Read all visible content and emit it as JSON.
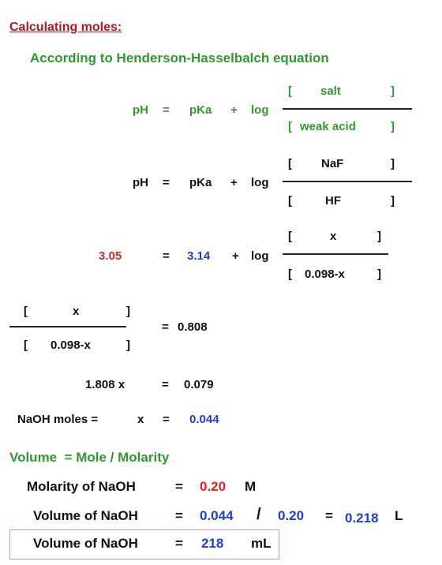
{
  "title": "Calculating moles:",
  "subtitle": "According to Henderson-Hasselbalch equation",
  "equation_1": {
    "lhs": "pH",
    "equals": "=",
    "term": "pKa",
    "plus": "+",
    "log": "log",
    "numerator": {
      "open": "[",
      "text": "salt",
      "close": "]"
    },
    "denominator": {
      "open": "[",
      "text": "weak acid",
      "close": "]"
    }
  },
  "equation_2": {
    "lhs": "pH",
    "equals": "=",
    "term": "pKa",
    "plus": "+",
    "log": "log",
    "numerator": {
      "open": "[",
      "text": "NaF",
      "close": "]"
    },
    "denominator": {
      "open": "[",
      "text": "HF",
      "close": "]"
    }
  },
  "equation_3": {
    "lhs": "3.05",
    "equals": "=",
    "term": "3.14",
    "plus": "+",
    "log": "log",
    "numerator": {
      "open": "[",
      "text": "x",
      "close": "]"
    },
    "denominator": {
      "open": "[",
      "text": "0.098-x",
      "close": "]"
    }
  },
  "equation_4": {
    "numerator": {
      "open": "[",
      "text": "x",
      "close": "]"
    },
    "denominator": {
      "open": "[",
      "text": "0.098-x",
      "close": "]"
    },
    "equals": "=",
    "rhs": "0.808"
  },
  "equation_5": {
    "lhs": "1.808 x",
    "equals": "=",
    "rhs": "0.079"
  },
  "equation_6": {
    "lhs": "NaOH moles =",
    "var": "x",
    "equals": "=",
    "rhs": "0.044"
  },
  "formula": "Volume  = Mole / Molarity",
  "molarity": {
    "label": "Molarity of NaOH",
    "equals": "=",
    "value": "0.20",
    "unit": "M"
  },
  "volume_calc": {
    "label": "Volume of NaOH",
    "equals": "=",
    "moles": "0.044",
    "divide": "/",
    "molarity": "0.20",
    "equals_2": "=",
    "value": "0.218",
    "unit": "L"
  },
  "volume_result": {
    "label": "Volume of NaOH",
    "equals": "=",
    "value": "218",
    "unit": "mL"
  }
}
